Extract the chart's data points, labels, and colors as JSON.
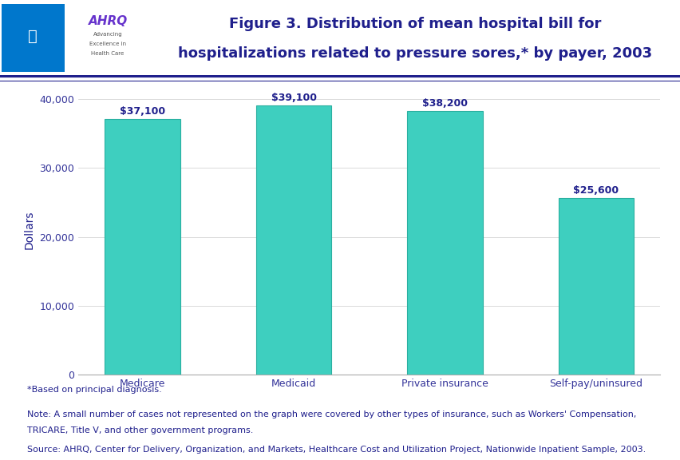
{
  "categories": [
    "Medicare",
    "Medicaid",
    "Private insurance",
    "Self-pay/uninsured"
  ],
  "values": [
    37100,
    39100,
    38200,
    25600
  ],
  "bar_labels": [
    "$37,100",
    "$39,100",
    "$38,200",
    "$25,600"
  ],
  "bar_color": "#3ECFBF",
  "bar_edgecolor": "#2AAFA0",
  "title_line1": "Figure 3. Distribution of mean hospital bill for",
  "title_line2": "hospitalizations related to pressure sores,* by payer, 2003",
  "title_color": "#1F1F8C",
  "ylabel": "Dollars",
  "ylabel_color": "#1F1F8C",
  "ylim": [
    0,
    42000
  ],
  "yticks": [
    0,
    10000,
    20000,
    30000,
    40000
  ],
  "ytick_labels": [
    "0",
    "10,000",
    "20,000",
    "30,000",
    "40,000"
  ],
  "tick_color": "#333399",
  "background_color": "#FFFFFF",
  "plot_bg_color": "#FFFFFF",
  "footnote1": "*Based on principal diagnosis.",
  "footnote2": "Note: A small number of cases not represented on the graph were covered by other types of insurance, such as Workers' Compensation,",
  "footnote2b": "TRICARE, Title V, and other government programs.",
  "footnote3": "Source: AHRQ, Center for Delivery, Organization, and Markets, Healthcare Cost and Utilization Project, Nationwide Inpatient Sample, 2003.",
  "header_line_color": "#1F1F8C",
  "bar_label_color": "#1F1F8C",
  "bar_label_fontsize": 9,
  "title_fontsize": 13,
  "footnote_fontsize": 8,
  "footnote_color": "#1F1F8C",
  "xtick_fontsize": 9,
  "ytick_fontsize": 9,
  "ylabel_fontsize": 10,
  "logo_bg_color": "#0077CC",
  "logo_text_color": "#FFFFFF",
  "ahrq_color": "#6633CC",
  "header_bg_color": "#FFFFFF",
  "hhs_box_color": "#0077CC"
}
